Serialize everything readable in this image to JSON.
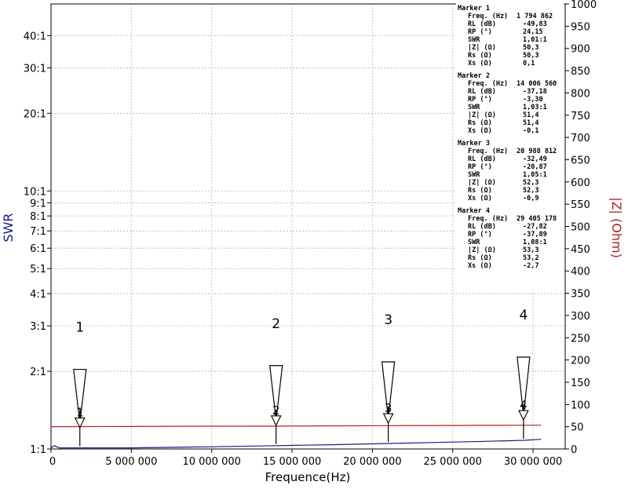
{
  "chart_data": {
    "type": "line",
    "xlabel": "Frequence(Hz)",
    "ylabel_left": "SWR",
    "ylabel_right": "|Z| (Ohm)",
    "xlim": [
      0,
      32000000
    ],
    "x_ticks": [
      {
        "value": 0,
        "label": "0"
      },
      {
        "value": 5000000,
        "label": "5 000 000"
      },
      {
        "value": 10000000,
        "label": "10 000 000"
      },
      {
        "value": 15000000,
        "label": "15 000 000"
      },
      {
        "value": 20000000,
        "label": "20 000 000"
      },
      {
        "value": 25000000,
        "label": "25 000 000"
      },
      {
        "value": 30000000,
        "label": "30 000 000"
      }
    ],
    "left_axis": {
      "scale": "log-swr",
      "ticks": [
        {
          "value": 1,
          "label": "1:1"
        },
        {
          "value": 2,
          "label": "2:1"
        },
        {
          "value": 3,
          "label": "3:1"
        },
        {
          "value": 4,
          "label": "4:1"
        },
        {
          "value": 5,
          "label": "5:1"
        },
        {
          "value": 6,
          "label": "6:1"
        },
        {
          "value": 7,
          "label": "7:1"
        },
        {
          "value": 8,
          "label": "8:1"
        },
        {
          "value": 9,
          "label": "9:1"
        },
        {
          "value": 10,
          "label": "10:1"
        },
        {
          "value": 20,
          "label": "20:1"
        },
        {
          "value": 30,
          "label": "30:1"
        },
        {
          "value": 40,
          "label": "40:1"
        }
      ]
    },
    "right_axis": {
      "ylim": [
        0,
        1000
      ],
      "ticks": [
        0,
        50,
        100,
        150,
        200,
        250,
        300,
        350,
        400,
        450,
        500,
        550,
        600,
        650,
        700,
        750,
        800,
        850,
        900,
        950,
        1000
      ]
    },
    "series": [
      {
        "key": "swr",
        "color": "#1a1a8c",
        "x": [
          0,
          200000,
          500000,
          1000000,
          1794862,
          5000000,
          10000000,
          14006560,
          18000000,
          20988812,
          24000000,
          27000000,
          29405178,
          30500000
        ],
        "y": [
          1.01,
          1.03,
          1.01,
          1.01,
          1.01,
          1.01,
          1.02,
          1.03,
          1.04,
          1.05,
          1.06,
          1.07,
          1.08,
          1.09
        ]
      },
      {
        "key": "impedance",
        "color": "#b22222",
        "x": [
          0,
          1794862,
          5000000,
          7500000,
          10000000,
          14006560,
          18000000,
          20988812,
          24000000,
          27000000,
          29405178,
          30500000
        ],
        "y": [
          50.1,
          50.3,
          50.5,
          51.0,
          51.1,
          51.4,
          52.0,
          52.3,
          52.8,
          53.1,
          53.3,
          53.4
        ]
      }
    ],
    "markers": [
      {
        "id": "1",
        "freq": 1794862,
        "swr": 1.01,
        "header": "Marker 1",
        "rows": [
          {
            "k": "Freq. (Hz)",
            "v": "1 794 862"
          },
          {
            "k": "RL (dB)",
            "v": "-49,83"
          },
          {
            "k": "RP (°)",
            "v": "24,15"
          },
          {
            "k": "SWR",
            "v": "1,01:1"
          },
          {
            "k": "|Z| (Ω)",
            "v": "50,3"
          },
          {
            "k": "Rs (Ω)",
            "v": "50,3"
          },
          {
            "k": "Xs (Ω)",
            "v": "0,1"
          }
        ]
      },
      {
        "id": "2",
        "freq": 14006560,
        "swr": 1.03,
        "header": "Marker 2",
        "rows": [
          {
            "k": "Freq. (Hz)",
            "v": "14 006 560"
          },
          {
            "k": "RL (dB)",
            "v": "-37,18"
          },
          {
            "k": "RP (°)",
            "v": "-3,30"
          },
          {
            "k": "SWR",
            "v": "1,03:1"
          },
          {
            "k": "|Z| (Ω)",
            "v": "51,4"
          },
          {
            "k": "Rs (Ω)",
            "v": "51,4"
          },
          {
            "k": "Xs (Ω)",
            "v": "-0,1"
          }
        ]
      },
      {
        "id": "3",
        "freq": 20988812,
        "swr": 1.05,
        "header": "Marker 3",
        "rows": [
          {
            "k": "Freq. (Hz)",
            "v": "20 988 812"
          },
          {
            "k": "RL (dB)",
            "v": "-32,49"
          },
          {
            "k": "RP (°)",
            "v": "-20,87"
          },
          {
            "k": "SWR",
            "v": "1,05:1"
          },
          {
            "k": "|Z| (Ω)",
            "v": "52,3"
          },
          {
            "k": "Rs (Ω)",
            "v": "52,3"
          },
          {
            "k": "Xs (Ω)",
            "v": "-0,9"
          }
        ]
      },
      {
        "id": "4",
        "freq": 29405178,
        "swr": 1.08,
        "header": "Marker 4",
        "rows": [
          {
            "k": "Freq. (Hz)",
            "v": "29 405 178"
          },
          {
            "k": "RL (dB)",
            "v": "-27,82"
          },
          {
            "k": "RP (°)",
            "v": "-37,89"
          },
          {
            "k": "SWR",
            "v": "1,08:1"
          },
          {
            "k": "|Z| (Ω)",
            "v": "53,3"
          },
          {
            "k": "Rs (Ω)",
            "v": "53,2"
          },
          {
            "k": "Xs (Ω)",
            "v": "-2,7"
          }
        ]
      }
    ],
    "grid": true
  }
}
